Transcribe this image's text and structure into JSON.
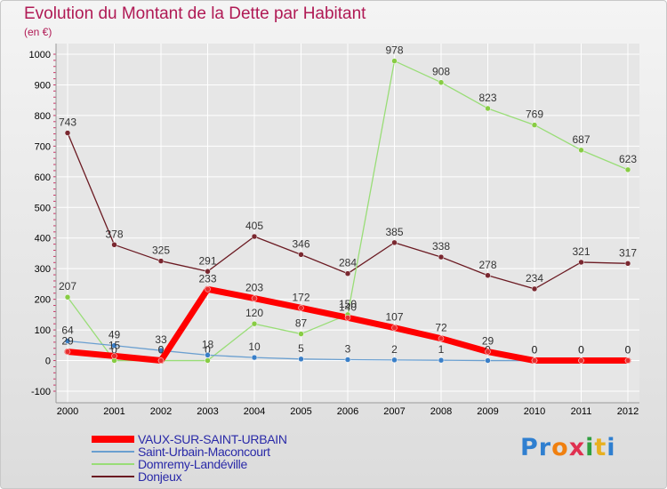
{
  "title": "Evolution du Montant de la Dette par Habitant",
  "unit": "(en €)",
  "logo": {
    "text": "Proxiti",
    "letter_colors": [
      "#2f7fd0",
      "#2f7fd0",
      "#f08010",
      "#e03050",
      "#2f9f3f",
      "#e8b020",
      "#2f7fd0"
    ]
  },
  "colors": {
    "title": "#b01a55",
    "axis_text": "#000000",
    "grid": "#ffffff",
    "axis_tick": "#cc3366"
  },
  "chart_data": {
    "type": "line",
    "title": "Evolution du Montant de la Dette par Habitant",
    "ylabel": "(en €)",
    "xlabel": "",
    "x": [
      2000,
      2001,
      2002,
      2003,
      2004,
      2005,
      2006,
      2007,
      2008,
      2009,
      2010,
      2011,
      2012
    ],
    "x_labels": [
      "2000",
      "2001",
      "2002",
      "2003",
      "2004",
      "2005",
      "2006",
      "2007",
      "2008",
      "2009",
      "2010",
      "2011",
      "2012"
    ],
    "ylim": [
      -100,
      1000
    ],
    "y_ticks": [
      -100,
      0,
      100,
      200,
      300,
      400,
      500,
      600,
      700,
      800,
      900,
      1000
    ],
    "y_tick_labels": [
      "-100",
      "0",
      "100",
      "200",
      "300",
      "400",
      "500",
      "600",
      "700",
      "800",
      "900",
      "1000"
    ],
    "grid": true,
    "legend_position": "bottom",
    "series": [
      {
        "name": "Donjeux",
        "color": "#6b1a22",
        "marker": "#7a2830",
        "width": 1.3,
        "values": [
          743,
          378,
          325,
          291,
          405,
          346,
          284,
          385,
          338,
          278,
          234,
          321,
          317
        ],
        "labels": [
          "743",
          "378",
          "325",
          "291",
          "405",
          "346",
          "284",
          "385",
          "338",
          "278",
          "234",
          "321",
          "317"
        ]
      },
      {
        "name": "Domremy-Landéville",
        "color": "#99dd77",
        "marker": "#88cc44",
        "width": 1.3,
        "values": [
          207,
          0,
          0,
          0,
          120,
          87,
          150,
          978,
          908,
          823,
          769,
          687,
          623
        ],
        "labels": [
          "207",
          "0",
          "0",
          "0",
          "120",
          "87",
          "150",
          "978",
          "908",
          "823",
          "769",
          "687",
          "623"
        ]
      },
      {
        "name": "Saint-Urbain-Maconcourt",
        "color": "#6a9fd0",
        "marker": "#3a7fc8",
        "width": 1.3,
        "values": [
          64,
          49,
          33,
          18,
          10,
          5,
          3,
          2,
          1,
          0,
          0,
          0,
          0
        ],
        "labels": [
          "64",
          "49",
          "33",
          "18",
          "10",
          "5",
          "3",
          "2",
          "1",
          "0",
          "0",
          "0",
          "0"
        ]
      },
      {
        "name": "VAUX-SUR-SAINT-URBAIN",
        "color": "#ff0000",
        "marker": "#e83030",
        "width": 7,
        "values": [
          29,
          15,
          0,
          233,
          203,
          172,
          140,
          107,
          72,
          29,
          0,
          0,
          0
        ],
        "labels": [
          "29",
          "15",
          "0",
          "233",
          "203",
          "172",
          "140",
          "107",
          "72",
          "29",
          "0",
          "0",
          "0"
        ]
      }
    ],
    "legend_order": [
      "VAUX-SUR-SAINT-URBAIN",
      "Saint-Urbain-Maconcourt",
      "Domremy-Landéville",
      "Donjeux"
    ]
  }
}
